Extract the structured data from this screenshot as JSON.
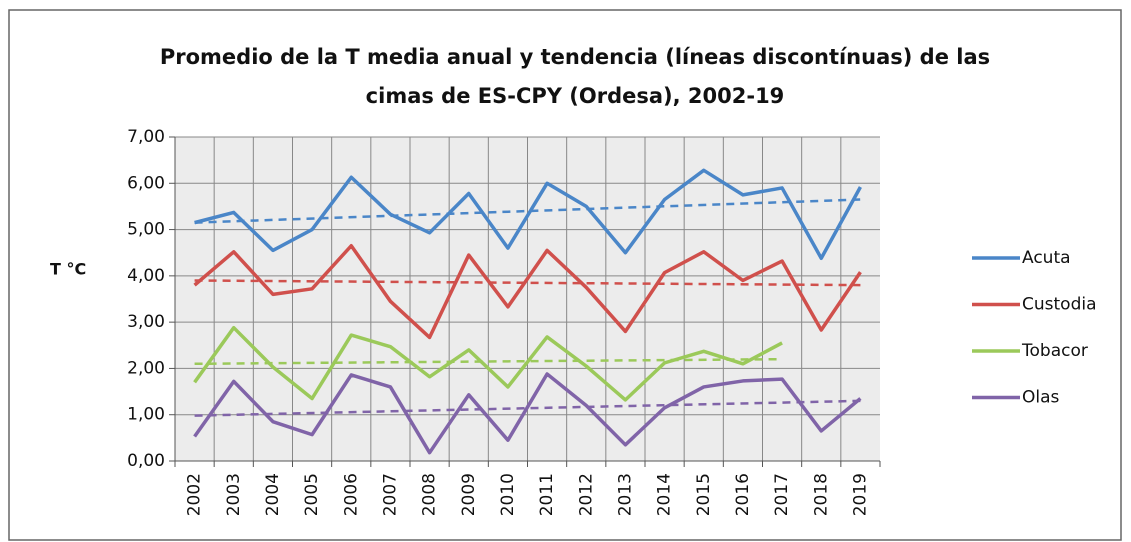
{
  "chart_data": {
    "type": "line",
    "title": [
      "Promedio de la T media anual y tendencia (líneas discontínuas) de las",
      "cimas de ES-CPY (Ordesa), 2002-19"
    ],
    "y_label": "T °C",
    "categories": [
      "2002",
      "2003",
      "2004",
      "2005",
      "2006",
      "2007",
      "2008",
      "2009",
      "2010",
      "2011",
      "2012",
      "2013",
      "2014",
      "2015",
      "2016",
      "2017",
      "2018",
      "2019"
    ],
    "series": [
      {
        "name": "Acuta",
        "color": "#4a86c8",
        "values": [
          5.15,
          5.37,
          4.55,
          5.0,
          6.13,
          5.33,
          4.93,
          5.78,
          4.6,
          6.0,
          5.5,
          4.5,
          5.65,
          6.28,
          5.75,
          5.9,
          4.38,
          5.92
        ],
        "trend": [
          5.15,
          5.65
        ]
      },
      {
        "name": "Custodia",
        "color": "#d0504c",
        "values": [
          3.8,
          4.52,
          3.6,
          3.72,
          4.65,
          3.45,
          2.67,
          4.45,
          3.33,
          4.55,
          3.75,
          2.8,
          4.07,
          4.52,
          3.9,
          4.32,
          2.83,
          4.08
        ],
        "trend": [
          3.9,
          3.8
        ]
      },
      {
        "name": "Tobacor",
        "color": "#9bc95a",
        "values": [
          1.7,
          2.88,
          2.03,
          1.35,
          2.72,
          2.47,
          1.82,
          2.4,
          1.6,
          2.68,
          2.05,
          1.32,
          2.12,
          2.37,
          2.1,
          2.55,
          null,
          null
        ],
        "trend": [
          2.1,
          2.2
        ]
      },
      {
        "name": "Olas",
        "color": "#8064a8",
        "values": [
          0.53,
          1.72,
          0.85,
          0.57,
          1.86,
          1.6,
          0.18,
          1.43,
          0.45,
          1.88,
          1.2,
          0.35,
          1.15,
          1.6,
          1.73,
          1.77,
          0.65,
          1.35
        ],
        "trend": [
          0.98,
          1.3
        ]
      }
    ],
    "ylim": [
      0,
      7
    ],
    "yticks": [
      {
        "value": 0,
        "label": "0,00"
      },
      {
        "value": 1,
        "label": "1,00"
      },
      {
        "value": 2,
        "label": "2,00"
      },
      {
        "value": 3,
        "label": "3,00"
      },
      {
        "value": 4,
        "label": "4,00"
      },
      {
        "value": 5,
        "label": "5,00"
      },
      {
        "value": 6,
        "label": "6,00"
      },
      {
        "value": 7,
        "label": "7,00"
      }
    ],
    "grid": true,
    "legend": "right"
  }
}
